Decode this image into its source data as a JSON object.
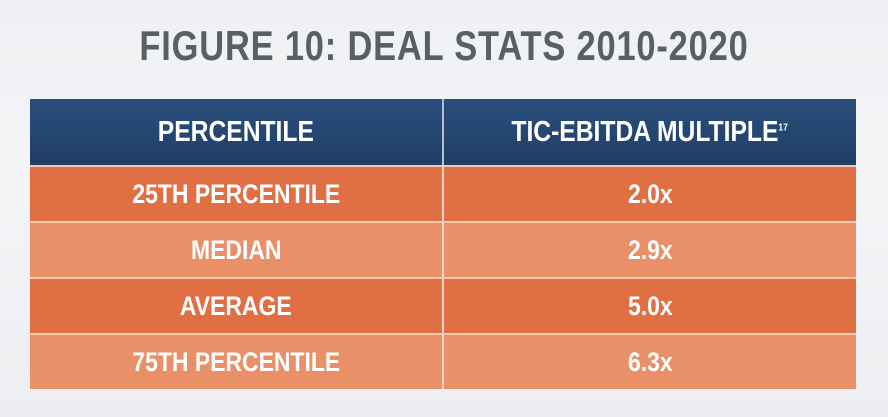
{
  "figure": {
    "title": "FIGURE 10: DEAL STATS 2010-2020"
  },
  "table": {
    "headers": [
      "PERCENTILE",
      "TIC-EBITDA MULTIPLE"
    ],
    "footnote_marker": "17",
    "rows": [
      {
        "label": "25TH PERCENTILE",
        "value": "2.0x"
      },
      {
        "label": "MEDIAN",
        "value": "2.9x"
      },
      {
        "label": "AVERAGE",
        "value": "5.0x"
      },
      {
        "label": "75TH PERCENTILE",
        "value": "6.3x"
      }
    ]
  },
  "colors": {
    "header": "#1f3e66",
    "row_dark": "#e06f43",
    "row_light": "#e99068",
    "title": "#5a5f66"
  }
}
